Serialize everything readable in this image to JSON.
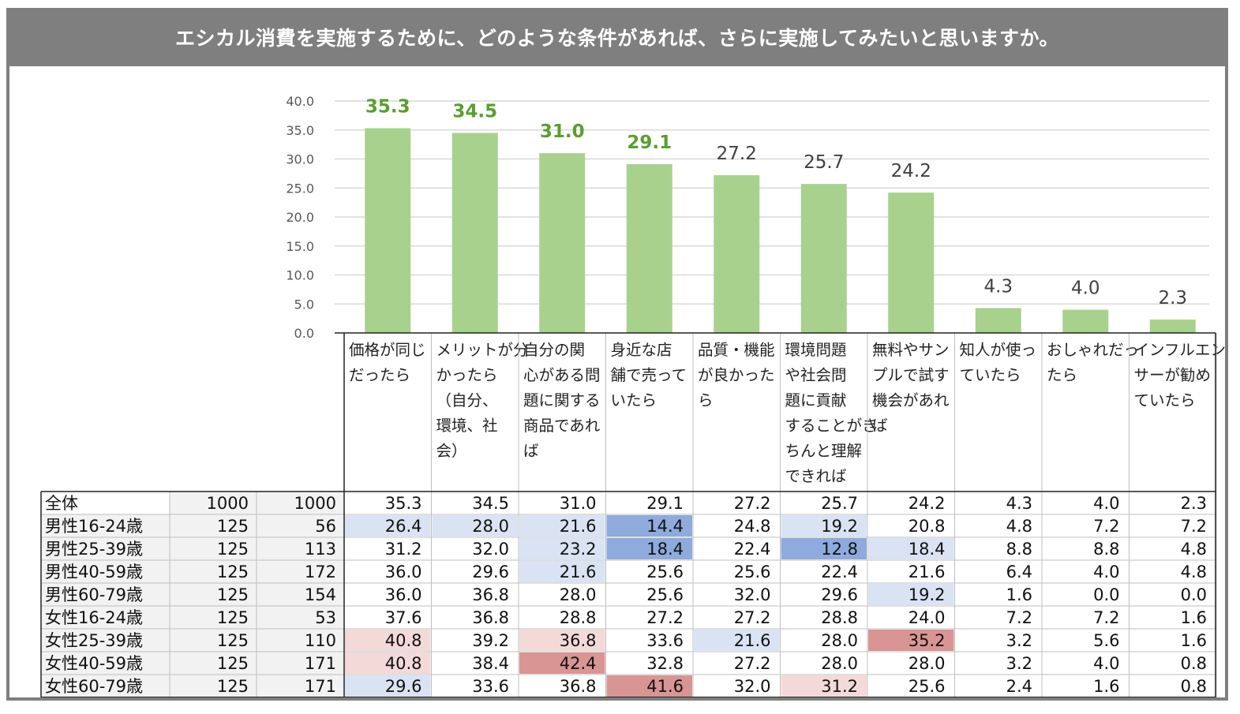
{
  "title": "エシカル消費を実施するために、どのような条件があれば、さらに実施してみたいと思いますか。",
  "colors": {
    "bar": "#a9d18e",
    "highlight_label": "#5a9e2f",
    "normal_label": "#404040",
    "blue_light": "#dae3f3",
    "blue_dark": "#8faadc",
    "red_light": "#f4d9d9",
    "red_dark": "#d99594"
  },
  "chart_data": {
    "type": "bar",
    "categories": [
      [
        "価格が同じ",
        "だったら"
      ],
      [
        "メリットが分",
        "かったら",
        "（自分、",
        "環境、社",
        "会）"
      ],
      [
        "自分の関",
        "心がある問",
        "題に関する",
        "商品であれ",
        "ば"
      ],
      [
        "身近な店",
        "舗で売って",
        "いたら"
      ],
      [
        "品質・機能",
        "が良かった",
        "ら"
      ],
      [
        "環境問題",
        "や社会問",
        "題に貢献",
        "することがき",
        "ちんと理解",
        "できれば"
      ],
      [
        "無料やサン",
        "プルで試す",
        "機会があれ",
        "ば"
      ],
      [
        "知人が使っ",
        "ていたら"
      ],
      [
        "おしゃれだっ",
        "たら"
      ],
      [
        "インフルエン",
        "サーが勧め",
        "ていたら"
      ]
    ],
    "values": [
      35.3,
      34.5,
      31.0,
      29.1,
      27.2,
      25.7,
      24.2,
      4.3,
      4.0,
      2.3
    ],
    "value_labels": [
      "35.3",
      "34.5",
      "31.0",
      "29.1",
      "27.2",
      "25.7",
      "24.2",
      "4.3",
      "4.0",
      "2.3"
    ],
    "highlighted": [
      true,
      true,
      true,
      true,
      false,
      false,
      false,
      false,
      false,
      false
    ],
    "ylim": [
      0,
      40
    ],
    "yticks": [
      "0.0",
      "5.0",
      "10.0",
      "15.0",
      "20.0",
      "25.0",
      "30.0",
      "35.0",
      "40.0"
    ],
    "grid": true,
    "table": {
      "rows": [
        {
          "label": "全体",
          "n1": "1000",
          "n2": "1000",
          "values": [
            "35.3",
            "34.5",
            "31.0",
            "29.1",
            "27.2",
            "25.7",
            "24.2",
            "4.3",
            "4.0",
            "2.3"
          ],
          "shade": [
            "",
            "",
            "",
            "",
            "",
            "",
            "",
            "",
            "",
            ""
          ]
        },
        {
          "label": "男性16-24歳",
          "n1": "125",
          "n2": "56",
          "values": [
            "26.4",
            "28.0",
            "21.6",
            "14.4",
            "24.8",
            "19.2",
            "20.8",
            "4.8",
            "7.2",
            "7.2"
          ],
          "shade": [
            "bl",
            "bl",
            "bl",
            "bd",
            "",
            "bl",
            "",
            "",
            "",
            ""
          ]
        },
        {
          "label": "男性25-39歳",
          "n1": "125",
          "n2": "113",
          "values": [
            "31.2",
            "32.0",
            "23.2",
            "18.4",
            "22.4",
            "12.8",
            "18.4",
            "8.8",
            "8.8",
            "4.8"
          ],
          "shade": [
            "",
            "",
            "bl",
            "bd",
            "",
            "bd",
            "bl",
            "",
            "",
            ""
          ]
        },
        {
          "label": "男性40-59歳",
          "n1": "125",
          "n2": "172",
          "values": [
            "36.0",
            "29.6",
            "21.6",
            "25.6",
            "25.6",
            "22.4",
            "21.6",
            "6.4",
            "4.0",
            "4.8"
          ],
          "shade": [
            "",
            "",
            "bl",
            "",
            "",
            "",
            "",
            "",
            "",
            ""
          ]
        },
        {
          "label": "男性60-79歳",
          "n1": "125",
          "n2": "154",
          "values": [
            "36.0",
            "36.8",
            "28.0",
            "25.6",
            "32.0",
            "29.6",
            "19.2",
            "1.6",
            "0.0",
            "0.0"
          ],
          "shade": [
            "",
            "",
            "",
            "",
            "",
            "",
            "bl",
            "",
            "",
            ""
          ]
        },
        {
          "label": "女性16-24歳",
          "n1": "125",
          "n2": "53",
          "values": [
            "37.6",
            "36.8",
            "28.8",
            "27.2",
            "27.2",
            "28.8",
            "24.0",
            "7.2",
            "7.2",
            "1.6"
          ],
          "shade": [
            "",
            "",
            "",
            "",
            "",
            "",
            "",
            "",
            "",
            ""
          ]
        },
        {
          "label": "女性25-39歳",
          "n1": "125",
          "n2": "110",
          "values": [
            "40.8",
            "39.2",
            "36.8",
            "33.6",
            "21.6",
            "28.0",
            "35.2",
            "3.2",
            "5.6",
            "1.6"
          ],
          "shade": [
            "rl",
            "",
            "rl",
            "",
            "bl",
            "",
            "rd",
            "",
            "",
            ""
          ]
        },
        {
          "label": "女性40-59歳",
          "n1": "125",
          "n2": "171",
          "values": [
            "40.8",
            "38.4",
            "42.4",
            "32.8",
            "27.2",
            "28.0",
            "28.0",
            "3.2",
            "4.0",
            "0.8"
          ],
          "shade": [
            "rl",
            "",
            "rd",
            "",
            "",
            "",
            "",
            "",
            "",
            ""
          ]
        },
        {
          "label": "女性60-79歳",
          "n1": "125",
          "n2": "171",
          "values": [
            "29.6",
            "33.6",
            "36.8",
            "41.6",
            "32.0",
            "31.2",
            "25.6",
            "2.4",
            "1.6",
            "0.8"
          ],
          "shade": [
            "bl",
            "",
            "",
            "rd",
            "",
            "rl",
            "",
            "",
            "",
            ""
          ]
        }
      ]
    }
  }
}
